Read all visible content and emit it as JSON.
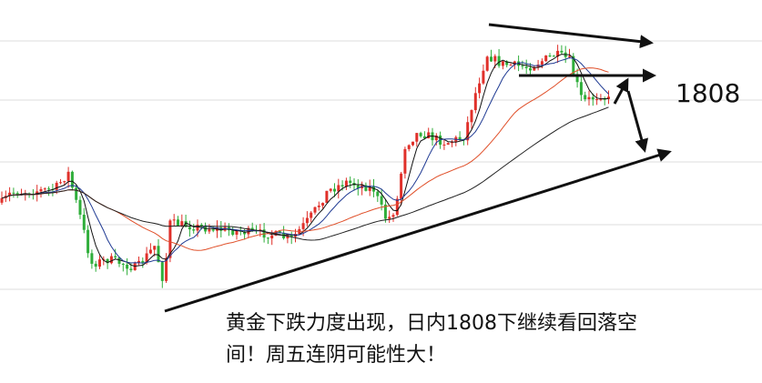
{
  "annotation": {
    "price_label": "1808",
    "text": [
      "黄金下跌力度出现，日内1808下继续看回落空",
      "间！周五连阴可能性大！"
    ]
  }
}
